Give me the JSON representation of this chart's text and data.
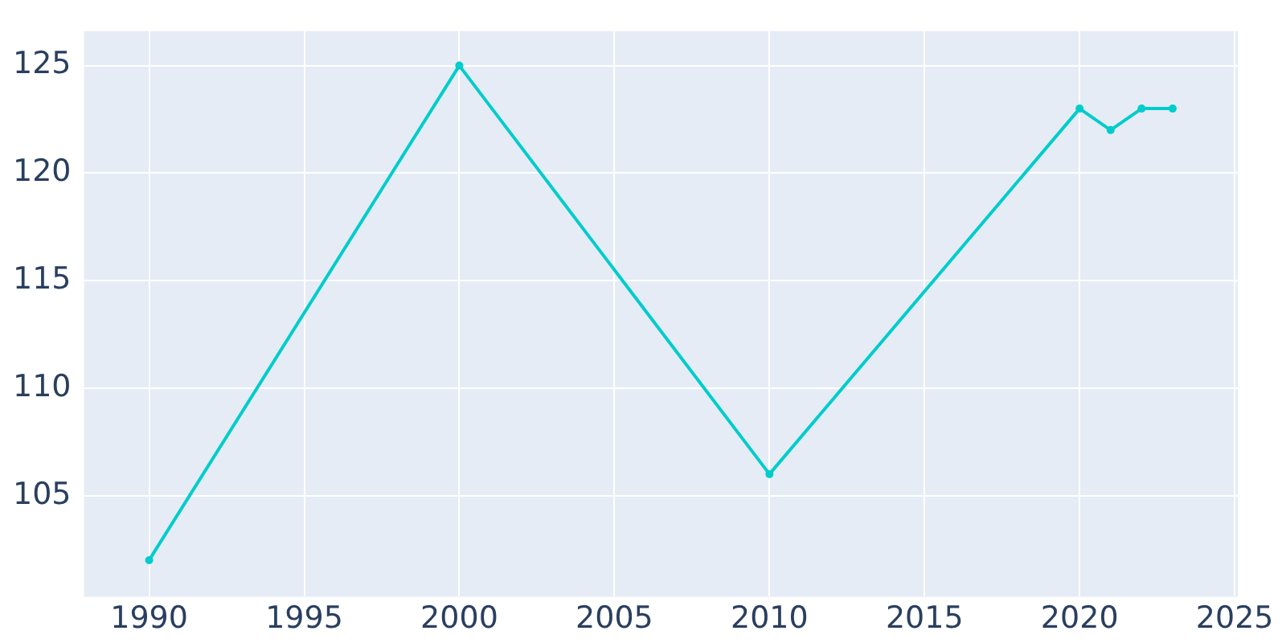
{
  "chart_data": {
    "type": "line",
    "x": [
      1990,
      2000,
      2010,
      2020,
      2021,
      2022,
      2023
    ],
    "series": [
      {
        "color": "#00cccc",
        "values": [
          102,
          125,
          106,
          123,
          122,
          123,
          123
        ]
      }
    ],
    "xlim": [
      1987.9,
      2025.1
    ],
    "xticks": [
      1990,
      1995,
      2000,
      2005,
      2010,
      2015,
      2020,
      2025
    ],
    "ylim": [
      100.3,
      126.6
    ],
    "yticks": [
      105,
      110,
      115,
      120,
      125
    ],
    "grid": true,
    "marker": "circle",
    "line_style": "solid",
    "legend": false
  }
}
